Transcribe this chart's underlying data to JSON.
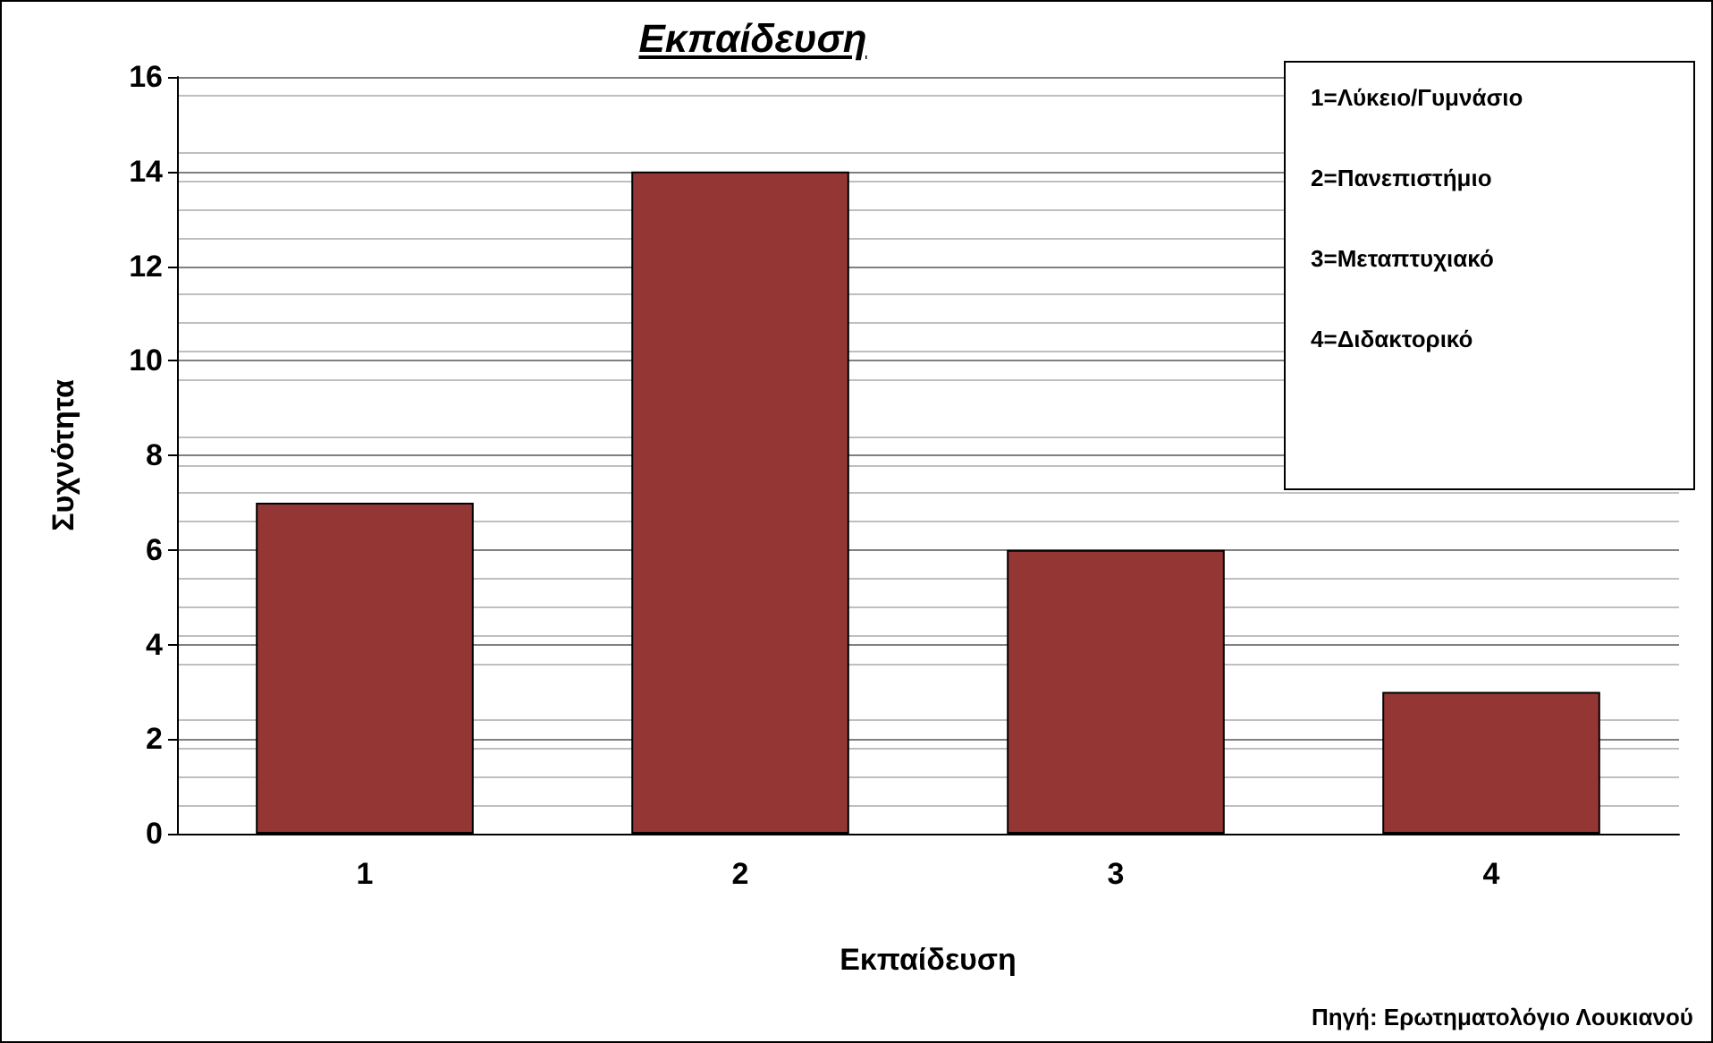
{
  "chart_data": {
    "type": "bar",
    "title": "Εκπαίδευση",
    "xlabel": "Εκπαίδευση",
    "ylabel": "Συχνότητα",
    "categories": [
      "1",
      "2",
      "3",
      "4"
    ],
    "values": [
      7,
      14,
      6,
      3
    ],
    "color": "#943634",
    "ylim": [
      0,
      16
    ],
    "yticks": [
      0,
      2,
      4,
      6,
      8,
      10,
      12,
      14,
      16
    ],
    "grid": true,
    "annotations": [
      "1=Λύκειο/Γυμνάσιο",
      "2=Πανεπιστήμιο",
      "3=Μεταπτυχιακό",
      "4=Διδακτορικό",
      "Πηγή: Ερωτηματολόγιο Λουκιανού"
    ]
  }
}
